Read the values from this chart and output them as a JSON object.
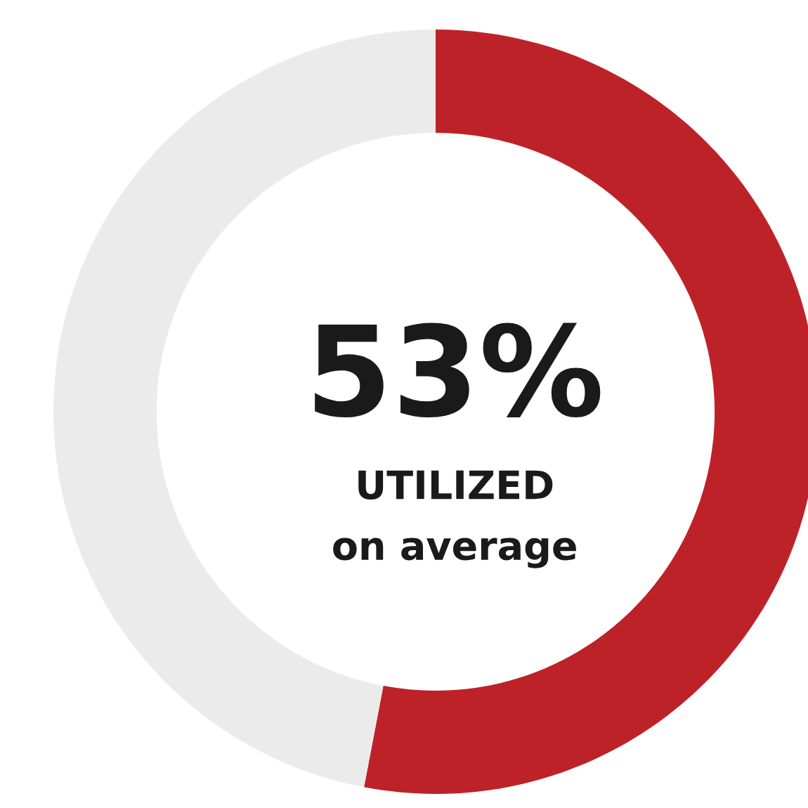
{
  "chart_data": {
    "type": "donut",
    "categories": [
      null,
      null
    ],
    "values": [
      53,
      47
    ],
    "colors": [
      "#be2229",
      "#ebebeb"
    ],
    "annotations": [
      "53%",
      "UTILIZED",
      "on average"
    ]
  }
}
